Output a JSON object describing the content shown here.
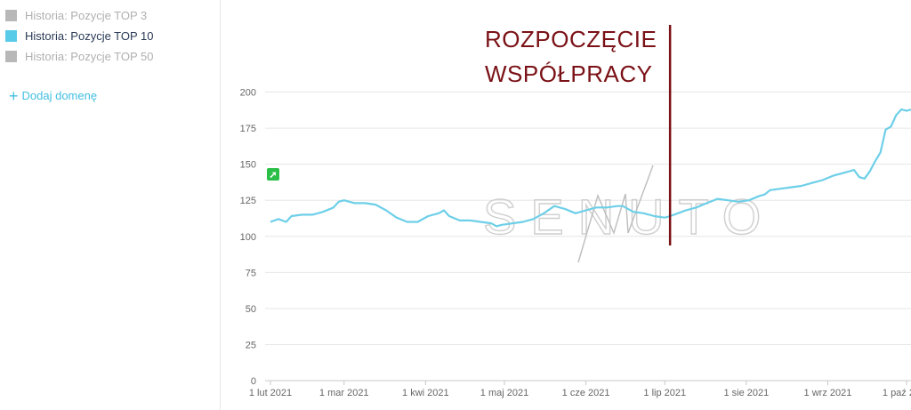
{
  "legend": {
    "items": [
      {
        "label": "Historia: Pozycje TOP 3",
        "color": "#b8b8b8",
        "active": false
      },
      {
        "label": "Historia: Pozycje TOP 10",
        "color": "#58cbe8",
        "active": true
      },
      {
        "label": "Historia: Pozycje TOP 50",
        "color": "#b8b8b8",
        "active": false
      }
    ],
    "add_domain_label": "Dodaj domenę"
  },
  "annotation": {
    "line1": "ROZPOCZĘCIE",
    "line2": "WSPÓŁPRACY",
    "color": "#7a1116"
  },
  "watermark": "SENUTO",
  "chart_data": {
    "type": "line",
    "title": "",
    "xlabel": "",
    "ylabel": "",
    "ylim": [
      0,
      200
    ],
    "yticks": [
      0,
      25,
      50,
      75,
      100,
      125,
      150,
      175,
      200
    ],
    "xticks": [
      {
        "label": "1 lut 2021",
        "day": 0
      },
      {
        "label": "1 mar 2021",
        "day": 28
      },
      {
        "label": "1 kwi 2021",
        "day": 59
      },
      {
        "label": "1 maj 2021",
        "day": 89
      },
      {
        "label": "1 cze 2021",
        "day": 120
      },
      {
        "label": "1 lip 2021",
        "day": 150
      },
      {
        "label": "1 sie 2021",
        "day": 181
      },
      {
        "label": "1 wrz 2021",
        "day": 212
      },
      {
        "label": "1 paź 2021",
        "day": 242
      }
    ],
    "grid": true,
    "annotation_day": 152,
    "series": [
      {
        "name": "Historia: Pozycje TOP 10",
        "color": "#6dcfe8",
        "points": [
          [
            0,
            110
          ],
          [
            3,
            112
          ],
          [
            6,
            110
          ],
          [
            8,
            114
          ],
          [
            12,
            115
          ],
          [
            16,
            115
          ],
          [
            20,
            117
          ],
          [
            24,
            120
          ],
          [
            26,
            124
          ],
          [
            28,
            125
          ],
          [
            32,
            123
          ],
          [
            36,
            123
          ],
          [
            40,
            122
          ],
          [
            44,
            118
          ],
          [
            48,
            113
          ],
          [
            52,
            110
          ],
          [
            56,
            110
          ],
          [
            60,
            114
          ],
          [
            64,
            116
          ],
          [
            66,
            118
          ],
          [
            68,
            114
          ],
          [
            72,
            111
          ],
          [
            76,
            111
          ],
          [
            80,
            110
          ],
          [
            84,
            109
          ],
          [
            86,
            107
          ],
          [
            88,
            108
          ],
          [
            92,
            109
          ],
          [
            96,
            110
          ],
          [
            100,
            112
          ],
          [
            104,
            116
          ],
          [
            108,
            121
          ],
          [
            112,
            119
          ],
          [
            116,
            116
          ],
          [
            120,
            118
          ],
          [
            124,
            120
          ],
          [
            128,
            120
          ],
          [
            132,
            121
          ],
          [
            134,
            121
          ],
          [
            138,
            117
          ],
          [
            142,
            116
          ],
          [
            146,
            114
          ],
          [
            150,
            113
          ],
          [
            152,
            114
          ],
          [
            155,
            116
          ],
          [
            158,
            118
          ],
          [
            162,
            120
          ],
          [
            166,
            123
          ],
          [
            170,
            126
          ],
          [
            174,
            125
          ],
          [
            178,
            124
          ],
          [
            182,
            125
          ],
          [
            186,
            128
          ],
          [
            188,
            129
          ],
          [
            190,
            132
          ],
          [
            194,
            133
          ],
          [
            198,
            134
          ],
          [
            202,
            135
          ],
          [
            206,
            137
          ],
          [
            210,
            139
          ],
          [
            214,
            142
          ],
          [
            218,
            144
          ],
          [
            222,
            146
          ],
          [
            224,
            141
          ],
          [
            226,
            140
          ],
          [
            228,
            145
          ],
          [
            230,
            152
          ],
          [
            232,
            158
          ],
          [
            234,
            174
          ],
          [
            236,
            176
          ],
          [
            238,
            184
          ],
          [
            240,
            188
          ],
          [
            242,
            187
          ],
          [
            244,
            188
          ],
          [
            246,
            190
          ],
          [
            248,
            190
          ]
        ]
      }
    ]
  }
}
